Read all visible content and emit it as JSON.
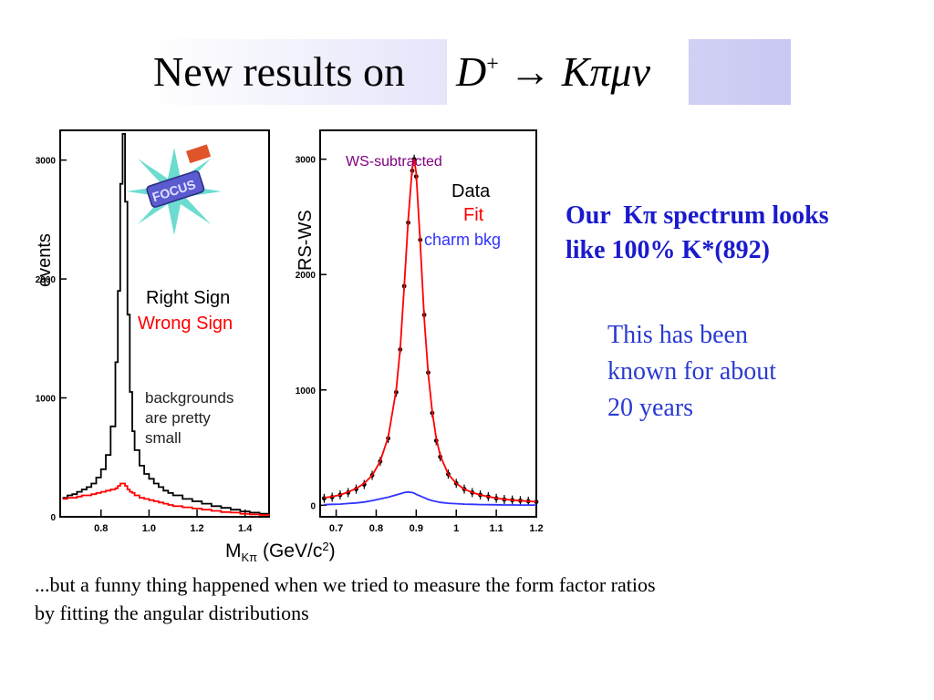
{
  "slide": {
    "title": "New results on",
    "formula": {
      "particle": "D",
      "charge": "+",
      "arrow": "→",
      "products": "Kπμν"
    },
    "notes": {
      "kpi_line1": "Our  Kπ spectrum looks",
      "kpi_line2": "like 100% K*(892)",
      "history_line1": "This has been",
      "history_line2": "known for about",
      "history_line3": "20 years"
    },
    "caption": {
      "line1": "...but a funny thing happened when we tried to measure the form factor ratios",
      "line2": "by fitting the angular distributions"
    }
  },
  "logo_text": "FOCUS",
  "colors": {
    "right_sign": "#000000",
    "wrong_sign": "#ff0000",
    "fit": "#ff0000",
    "charm_bkg": "#3333ff",
    "ws_label": "#800080",
    "note_blue": "#1a1acc"
  },
  "chart_data": [
    {
      "type": "line",
      "ylabel": "events",
      "xlabel": "M_Kπ (GeV/c²)",
      "xlim": [
        0.63,
        1.5
      ],
      "ylim": [
        0,
        3250
      ],
      "x_ticks": [
        "0.8",
        "1.0",
        "1.2",
        "1.4"
      ],
      "y_ticks": [
        "0",
        "1000",
        "2000",
        "3000"
      ],
      "legend": [
        "Right Sign",
        "Wrong Sign"
      ],
      "annotation": [
        "backgrounds",
        "are pretty",
        "small"
      ],
      "x": [
        0.64,
        0.66,
        0.68,
        0.7,
        0.72,
        0.74,
        0.76,
        0.78,
        0.8,
        0.82,
        0.84,
        0.86,
        0.87,
        0.88,
        0.89,
        0.9,
        0.91,
        0.92,
        0.93,
        0.94,
        0.96,
        0.98,
        1.0,
        1.02,
        1.04,
        1.06,
        1.08,
        1.1,
        1.14,
        1.18,
        1.22,
        1.26,
        1.3,
        1.34,
        1.38,
        1.42,
        1.46,
        1.5
      ],
      "series": [
        {
          "name": "Right Sign",
          "values": [
            160,
            180,
            190,
            210,
            230,
            250,
            280,
            330,
            400,
            520,
            760,
            1300,
            1900,
            2800,
            3220,
            2650,
            1700,
            1050,
            720,
            560,
            430,
            360,
            320,
            280,
            250,
            220,
            200,
            180,
            150,
            130,
            110,
            90,
            75,
            60,
            45,
            35,
            25,
            20
          ]
        },
        {
          "name": "Wrong Sign",
          "values": [
            150,
            160,
            160,
            170,
            180,
            180,
            190,
            200,
            210,
            220,
            230,
            240,
            260,
            280,
            280,
            260,
            230,
            210,
            200,
            180,
            160,
            150,
            140,
            130,
            120,
            110,
            100,
            90,
            80,
            70,
            60,
            50,
            40,
            35,
            25,
            20,
            15,
            10
          ]
        }
      ]
    },
    {
      "type": "line",
      "ylabel": "RS-WS",
      "xlim": [
        0.66,
        1.2
      ],
      "ylim": [
        -100,
        3250
      ],
      "x_ticks": [
        "0.7",
        "0.8",
        "0.9",
        "1",
        "1.1",
        "1.2"
      ],
      "y_ticks": [
        "0",
        "1000",
        "2000",
        "3000"
      ],
      "legend": [
        "Data",
        "Fit",
        "charm bkg"
      ],
      "annotation": "WS-subtracted",
      "x": [
        0.67,
        0.69,
        0.71,
        0.73,
        0.75,
        0.77,
        0.79,
        0.81,
        0.83,
        0.85,
        0.86,
        0.87,
        0.88,
        0.89,
        0.895,
        0.9,
        0.91,
        0.92,
        0.93,
        0.94,
        0.95,
        0.96,
        0.98,
        1.0,
        1.02,
        1.04,
        1.06,
        1.08,
        1.1,
        1.12,
        1.14,
        1.16,
        1.18,
        1.2
      ],
      "series": [
        {
          "name": "Data",
          "values": [
            60,
            70,
            90,
            110,
            140,
            180,
            260,
            380,
            580,
            980,
            1350,
            1900,
            2450,
            2900,
            3000,
            2850,
            2300,
            1650,
            1150,
            800,
            560,
            420,
            270,
            190,
            140,
            110,
            90,
            75,
            60,
            50,
            45,
            40,
            35,
            30
          ]
        },
        {
          "name": "Fit",
          "values": [
            65,
            75,
            90,
            115,
            145,
            190,
            260,
            380,
            590,
            1000,
            1360,
            1900,
            2480,
            2920,
            3000,
            2880,
            2280,
            1620,
            1140,
            810,
            580,
            430,
            270,
            190,
            140,
            110,
            90,
            75,
            62,
            52,
            45,
            40,
            35,
            30
          ]
        },
        {
          "name": "charm bkg",
          "values": [
            5,
            8,
            10,
            15,
            20,
            28,
            40,
            55,
            70,
            90,
            100,
            110,
            115,
            110,
            105,
            95,
            80,
            65,
            50,
            40,
            32,
            25,
            18,
            14,
            10,
            8,
            6,
            5,
            4,
            3,
            3,
            2,
            2,
            2
          ]
        }
      ]
    }
  ]
}
